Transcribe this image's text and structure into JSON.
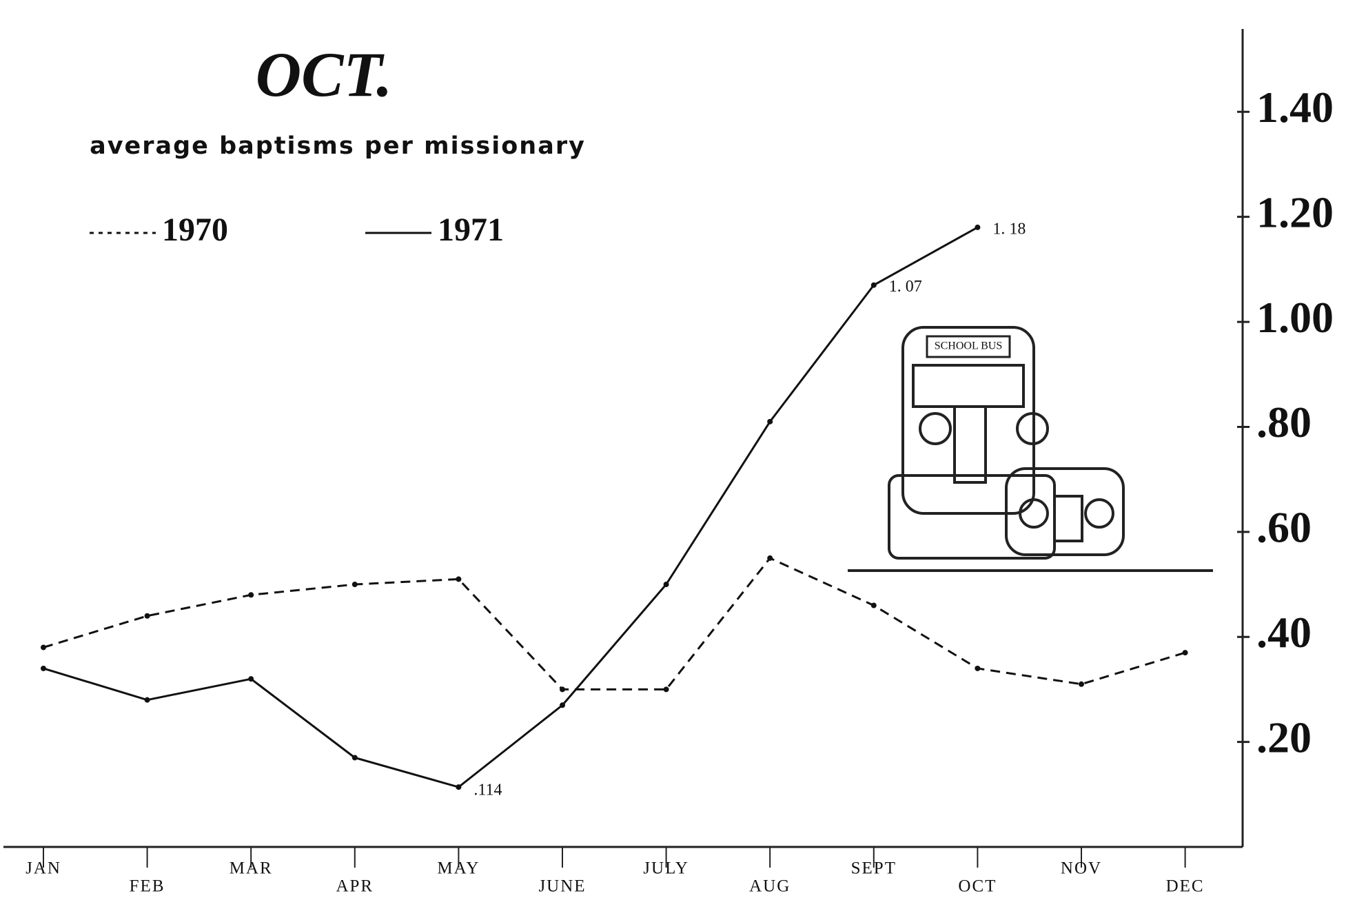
{
  "chart_data": {
    "type": "line",
    "title": "OCT.",
    "subtitle": "average baptisms per missionary",
    "categories": [
      "JAN",
      "FEB",
      "MAR",
      "APR",
      "MAY",
      "JUNE",
      "JULY",
      "AUG",
      "SEPT",
      "OCT",
      "NOV",
      "DEC"
    ],
    "series": [
      {
        "name": "1970",
        "color": "#111111",
        "dash": true,
        "values": [
          0.38,
          0.44,
          0.48,
          0.5,
          0.51,
          0.3,
          0.3,
          0.55,
          0.46,
          0.34,
          0.31,
          0.37
        ]
      },
      {
        "name": "1971",
        "color": "#111111",
        "dash": false,
        "values": [
          0.34,
          0.28,
          0.32,
          0.17,
          0.114,
          0.27,
          0.5,
          0.81,
          1.07,
          1.18,
          null,
          null
        ],
        "value_labels": [
          null,
          null,
          null,
          null,
          ".114",
          null,
          null,
          null,
          "1. 07",
          "1. 18",
          null,
          null
        ]
      }
    ],
    "ylim": [
      0,
      1.55
    ],
    "yticks": [
      {
        "value": 0.2,
        "label": ".20"
      },
      {
        "value": 0.4,
        "label": ".40"
      },
      {
        "value": 0.6,
        "label": ".60"
      },
      {
        "value": 0.8,
        "label": ".80"
      },
      {
        "value": 1.0,
        "label": "1.00"
      },
      {
        "value": 1.2,
        "label": "1.20"
      },
      {
        "value": 1.4,
        "label": "1.40"
      }
    ],
    "y_axis_side": "right",
    "grid": false
  }
}
